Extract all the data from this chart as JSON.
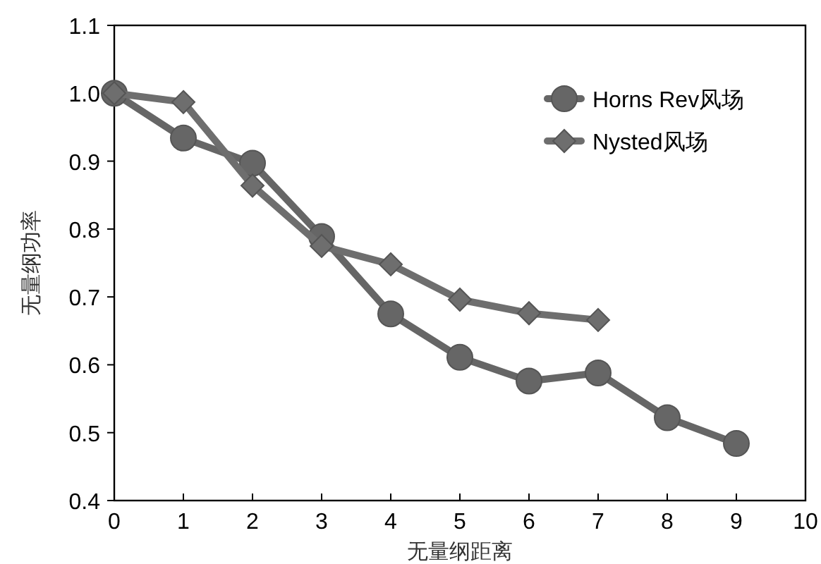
{
  "chart_data": {
    "type": "line",
    "xlabel": "无量纲距离",
    "ylabel": "无量纲功率",
    "xlim": [
      0,
      10
    ],
    "xticks": [
      0,
      1,
      2,
      3,
      4,
      5,
      6,
      7,
      8,
      9,
      10
    ],
    "ylim": [
      0.4,
      1.1
    ],
    "yticks": [
      {
        "value": 0.4,
        "label": "0.4"
      },
      {
        "value": 0.5,
        "label": "0.5"
      },
      {
        "value": 0.6,
        "label": "0.6"
      },
      {
        "value": 0.7,
        "label": "0.7"
      },
      {
        "value": 0.8,
        "label": "0.8"
      },
      {
        "value": 0.9,
        "label": "0.9"
      },
      {
        "value": 1.0,
        "label": "1.0"
      },
      {
        "value": 1.1,
        "label": "1.1"
      }
    ],
    "grid": false,
    "legend": "top right",
    "line_style": "solid",
    "series": [
      {
        "name": "Horns Rev风场",
        "color": "#666666",
        "marker": "circle",
        "x": [
          0,
          1,
          2,
          3,
          4,
          5,
          6,
          7,
          8,
          9
        ],
        "values": [
          1.0,
          0.934,
          0.897,
          0.789,
          0.675,
          0.611,
          0.576,
          0.588,
          0.522,
          0.484
        ]
      },
      {
        "name": "Nysted风场",
        "color": "#6e6e6e",
        "marker": "diamond",
        "x": [
          0,
          1,
          2,
          3,
          4,
          5,
          6,
          7
        ],
        "values": [
          1.0,
          0.987,
          0.864,
          0.775,
          0.748,
          0.696,
          0.676,
          0.666
        ]
      }
    ]
  }
}
